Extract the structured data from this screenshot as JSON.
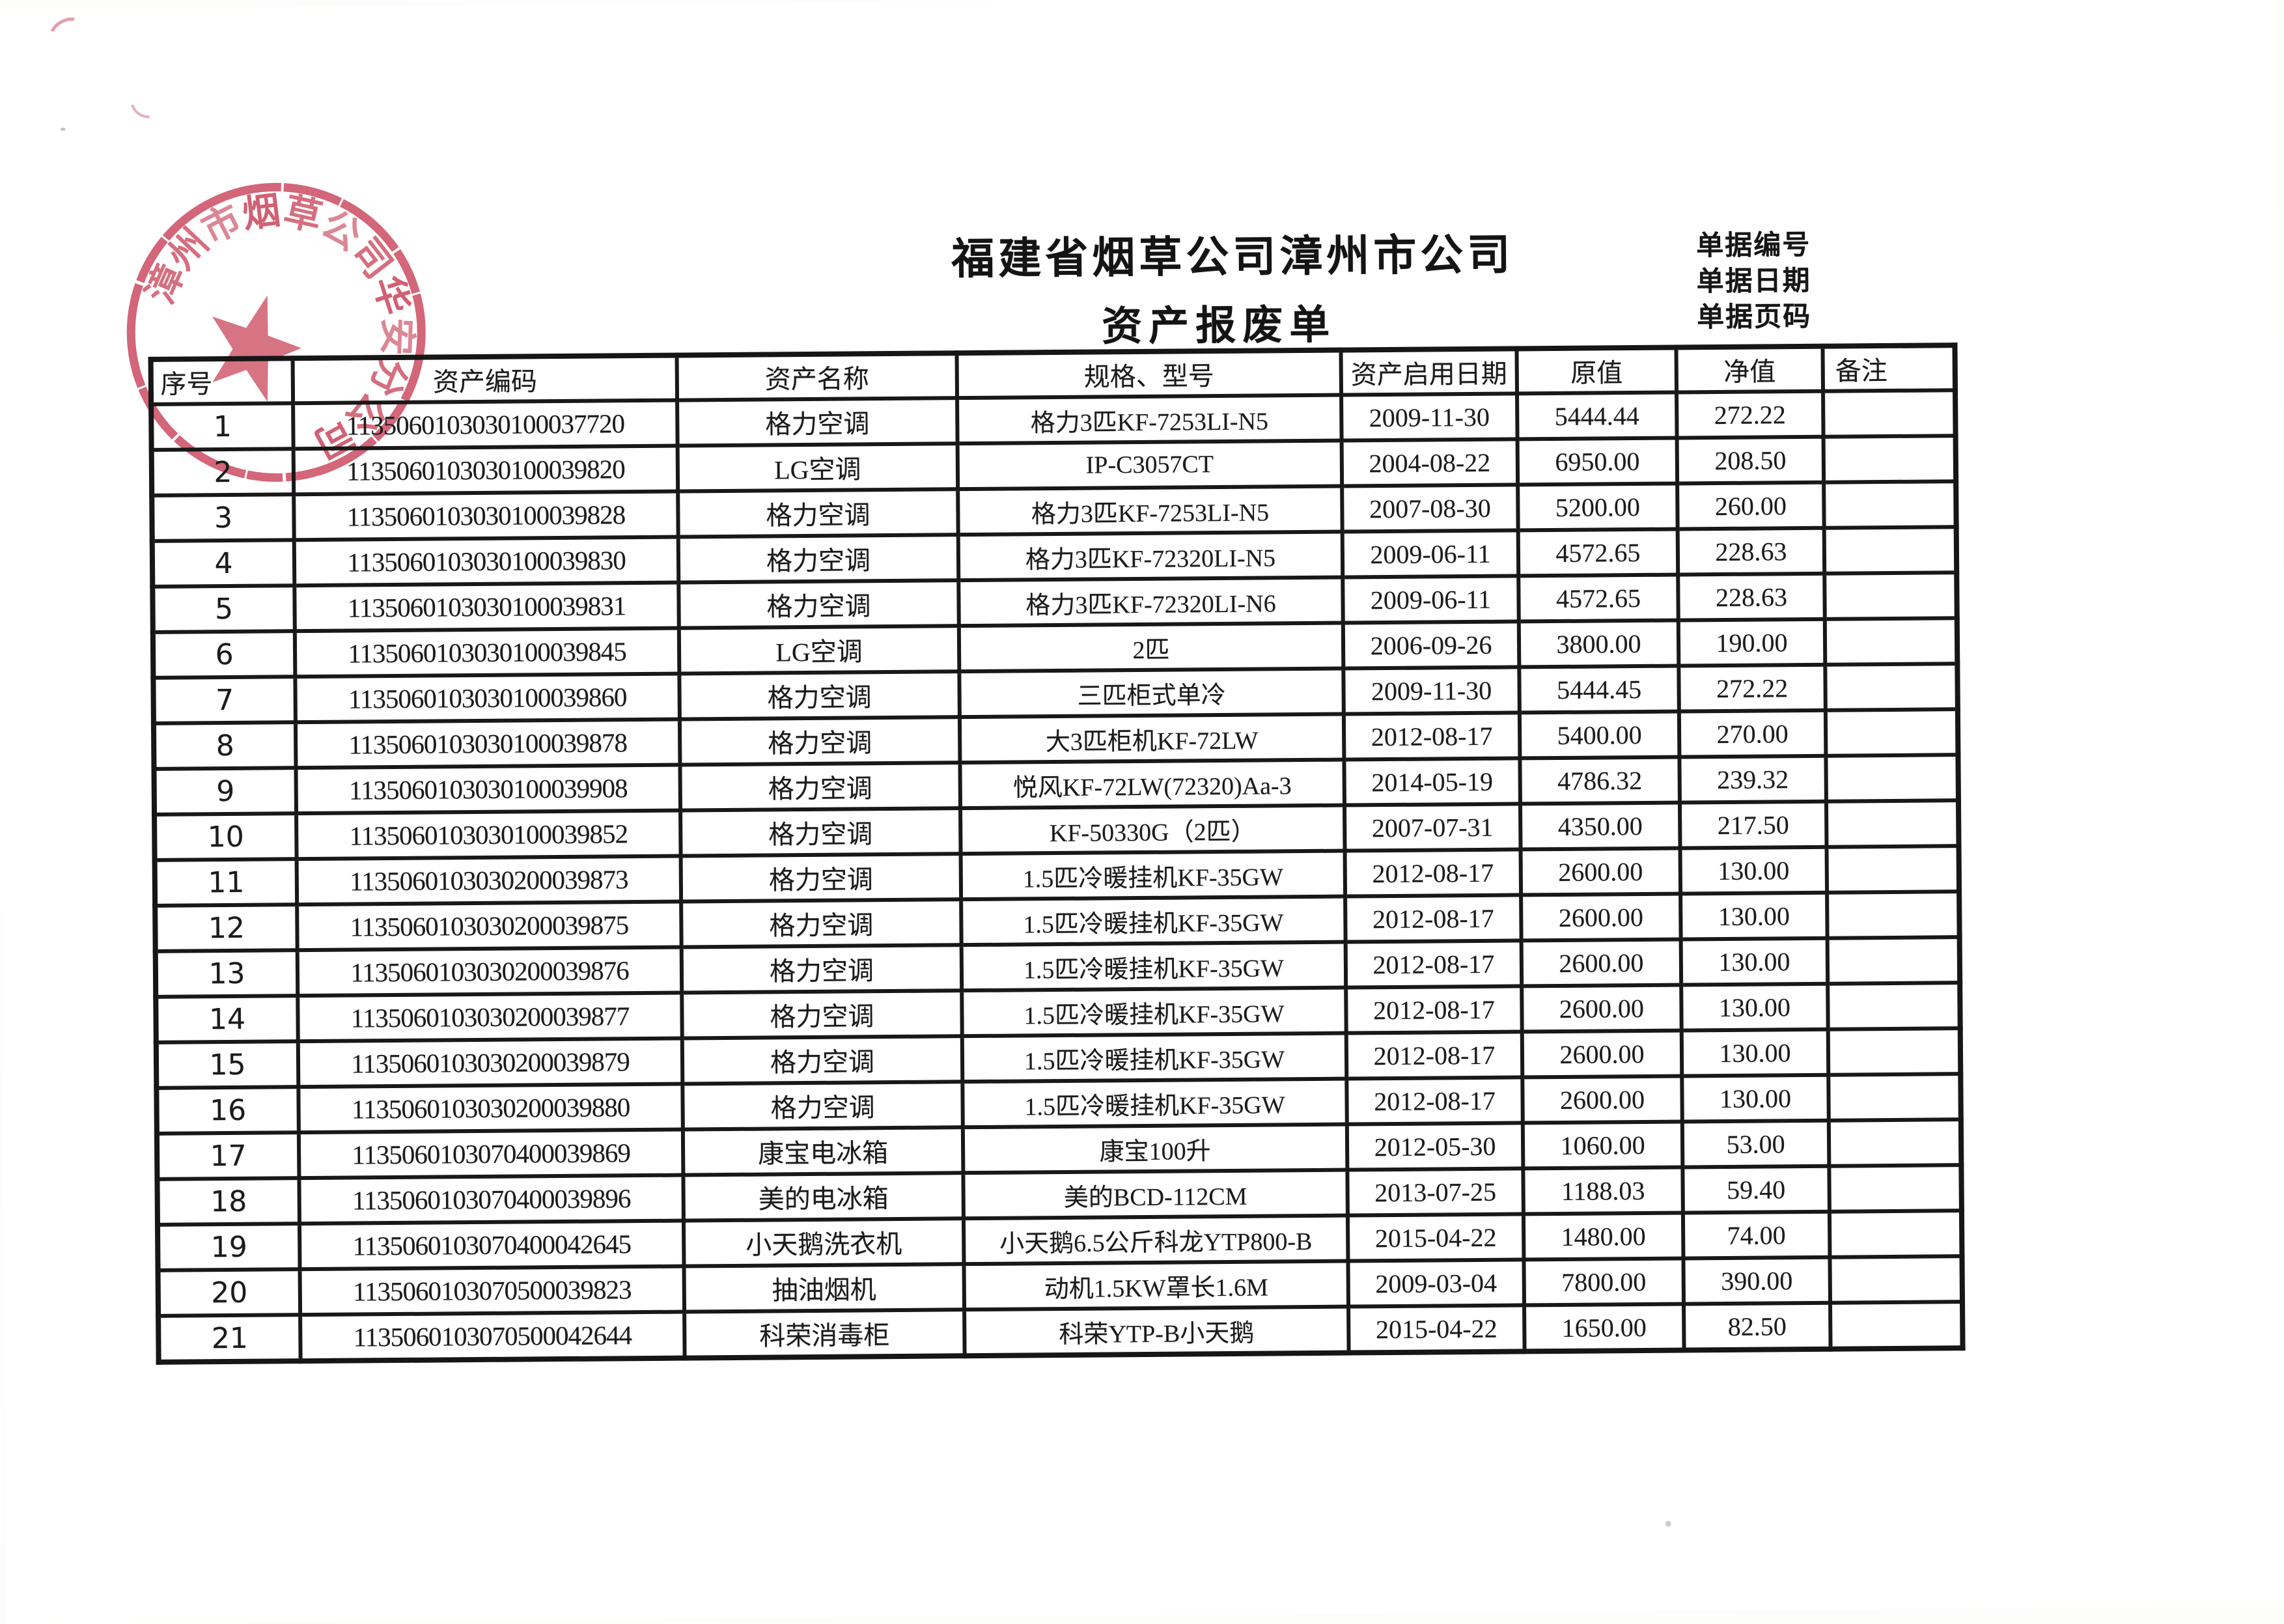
{
  "page": {
    "title": "福建省烟草公司漳州市公司",
    "subtitle": "资产报废单",
    "doc_labels": [
      "单据编号",
      "单据日期",
      "单据页码"
    ]
  },
  "stamp": {
    "text": "漳州市烟草公司华安分公司",
    "color": "#c84258",
    "shape": "round-seal-with-star"
  },
  "table": {
    "headers": [
      "序号",
      "资产编码",
      "资产名称",
      "规格、型号",
      "资产启用日期",
      "原值",
      "净值",
      "备注"
    ],
    "rows": [
      [
        "1",
        "1135060103030100037720",
        "格力空调",
        "格力3匹KF-7253LI-N5",
        "2009-11-30",
        "5444.44",
        "272.22",
        ""
      ],
      [
        "2",
        "1135060103030100039820",
        "LG空调",
        "IP-C3057CT",
        "2004-08-22",
        "6950.00",
        "208.50",
        ""
      ],
      [
        "3",
        "1135060103030100039828",
        "格力空调",
        "格力3匹KF-7253LI-N5",
        "2007-08-30",
        "5200.00",
        "260.00",
        ""
      ],
      [
        "4",
        "1135060103030100039830",
        "格力空调",
        "格力3匹KF-72320LI-N5",
        "2009-06-11",
        "4572.65",
        "228.63",
        ""
      ],
      [
        "5",
        "1135060103030100039831",
        "格力空调",
        "格力3匹KF-72320LI-N6",
        "2009-06-11",
        "4572.65",
        "228.63",
        ""
      ],
      [
        "6",
        "1135060103030100039845",
        "LG空调",
        "2匹",
        "2006-09-26",
        "3800.00",
        "190.00",
        ""
      ],
      [
        "7",
        "1135060103030100039860",
        "格力空调",
        "三匹柜式单冷",
        "2009-11-30",
        "5444.45",
        "272.22",
        ""
      ],
      [
        "8",
        "1135060103030100039878",
        "格力空调",
        "大3匹柜机KF-72LW",
        "2012-08-17",
        "5400.00",
        "270.00",
        ""
      ],
      [
        "9",
        "1135060103030100039908",
        "格力空调",
        "悦风KF-72LW(72320)Aa-3",
        "2014-05-19",
        "4786.32",
        "239.32",
        ""
      ],
      [
        "10",
        "1135060103030100039852",
        "格力空调",
        "KF-50330G（2匹）",
        "2007-07-31",
        "4350.00",
        "217.50",
        ""
      ],
      [
        "11",
        "1135060103030200039873",
        "格力空调",
        "1.5匹冷暖挂机KF-35GW",
        "2012-08-17",
        "2600.00",
        "130.00",
        ""
      ],
      [
        "12",
        "1135060103030200039875",
        "格力空调",
        "1.5匹冷暖挂机KF-35GW",
        "2012-08-17",
        "2600.00",
        "130.00",
        ""
      ],
      [
        "13",
        "1135060103030200039876",
        "格力空调",
        "1.5匹冷暖挂机KF-35GW",
        "2012-08-17",
        "2600.00",
        "130.00",
        ""
      ],
      [
        "14",
        "1135060103030200039877",
        "格力空调",
        "1.5匹冷暖挂机KF-35GW",
        "2012-08-17",
        "2600.00",
        "130.00",
        ""
      ],
      [
        "15",
        "1135060103030200039879",
        "格力空调",
        "1.5匹冷暖挂机KF-35GW",
        "2012-08-17",
        "2600.00",
        "130.00",
        ""
      ],
      [
        "16",
        "1135060103030200039880",
        "格力空调",
        "1.5匹冷暖挂机KF-35GW",
        "2012-08-17",
        "2600.00",
        "130.00",
        ""
      ],
      [
        "17",
        "1135060103070400039869",
        "康宝电冰箱",
        "康宝100升",
        "2012-05-30",
        "1060.00",
        "53.00",
        ""
      ],
      [
        "18",
        "1135060103070400039896",
        "美的电冰箱",
        "美的BCD-112CM",
        "2013-07-25",
        "1188.03",
        "59.40",
        ""
      ],
      [
        "19",
        "1135060103070400042645",
        "小天鹅洗衣机",
        "小天鹅6.5公斤科龙YTP800-B",
        "2015-04-22",
        "1480.00",
        "74.00",
        ""
      ],
      [
        "20",
        "1135060103070500039823",
        "抽油烟机",
        "动机1.5KW罩长1.6M",
        "2009-03-04",
        "7800.00",
        "390.00",
        ""
      ],
      [
        "21",
        "1135060103070500042644",
        "科荣消毒柜",
        "科荣YTP-B小天鹅",
        "2015-04-22",
        "1650.00",
        "82.50",
        ""
      ]
    ]
  }
}
